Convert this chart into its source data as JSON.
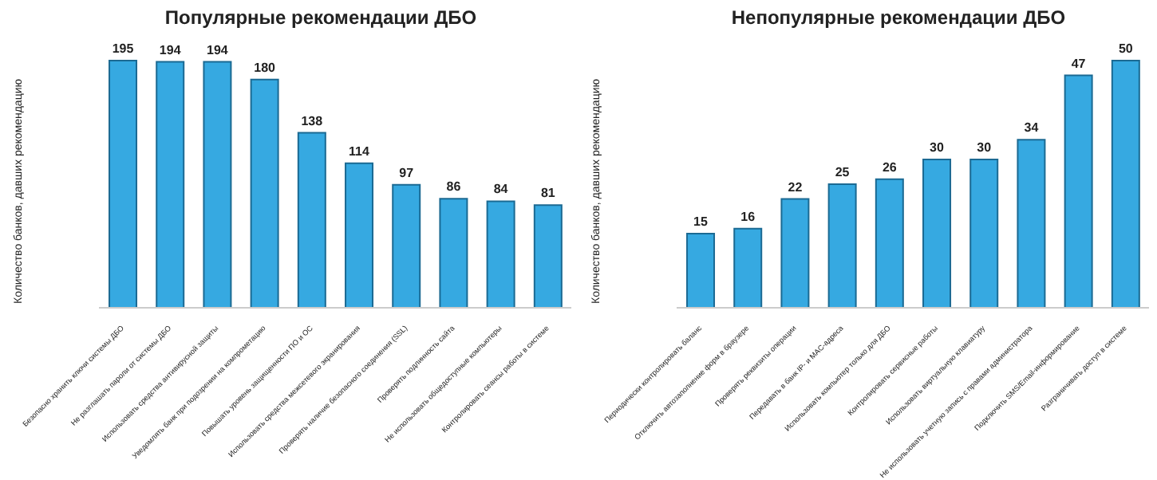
{
  "chart_data": [
    {
      "type": "bar",
      "title": "Популярные рекомендации ДБО",
      "ylabel": "Количество банков, давших рекомендацию",
      "categories": [
        "Безопасно хранить ключи системы ДБО",
        "Не разглашать пароли от системы ДБО",
        "Использовать средства антивирусной защиты",
        "Уведомлять банк при подозрении на компрометацию",
        "Повышать уровень защищенности ПО и ОС",
        "Использовать средства межсетевого экранирования",
        "Проверять наличие безопасного соединения (SSL)",
        "Проверять подлинность сайта",
        "Не использовать общедоступные компьютеры",
        "Контролировать сеансы работы в системе"
      ],
      "values": [
        195,
        194,
        194,
        180,
        138,
        114,
        97,
        86,
        84,
        81
      ],
      "color": "#36a9e1",
      "data_labels": true,
      "grid": false
    },
    {
      "type": "bar",
      "title": "Непопулярные рекомендации ДБО",
      "ylabel": "Количество банков, давших рекомендацию",
      "categories": [
        "Периодически контролировать баланс",
        "Отключить автозаполнение форм в браузере",
        "Проверять реквизиты операции",
        "Передавать в банк IP- и MAC-адреса",
        "Использовать компьютер только для ДБО",
        "Контролировать сервисные работы",
        "Использовать виртуальную клавиатуру",
        "Не использовать учетную запись с правами администратора",
        "Подключить SMS/Email-информирование",
        "Разграничивать доступ в системе"
      ],
      "values": [
        15,
        16,
        22,
        25,
        26,
        30,
        30,
        34,
        47,
        50
      ],
      "color": "#36a9e1",
      "data_labels": true,
      "grid": false
    }
  ]
}
